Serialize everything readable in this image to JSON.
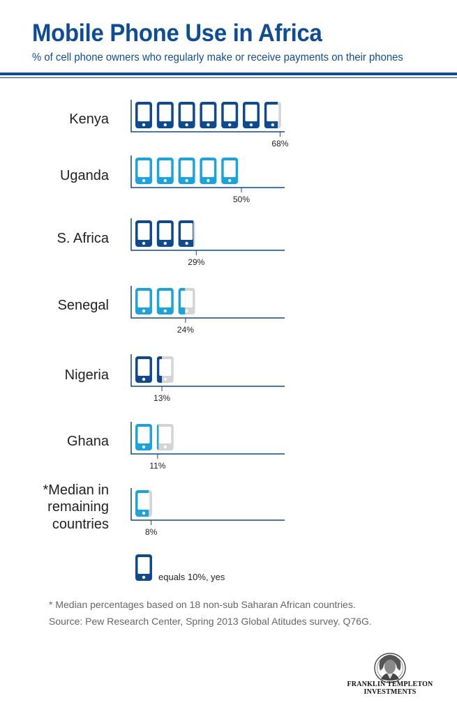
{
  "header": {
    "title": "Mobile Phone Use in Africa",
    "subtitle": "% of cell phone owners who regularly make or receive payments on their phones"
  },
  "colors": {
    "brand_blue": "#0d4d98",
    "dark_phone": "#0e4a8f",
    "light_phone": "#1aa3dd",
    "empty_phone": "#d4d4d4",
    "baseline": "#0e4a8f"
  },
  "chart_data": {
    "type": "pictogram",
    "unit": "equals 10%, yes",
    "categories": [
      "Kenya",
      "Uganda",
      "S. Africa",
      "Senegal",
      "Nigeria",
      "Ghana",
      "*Median in remaining countries"
    ],
    "values": [
      68,
      50,
      29,
      24,
      13,
      11,
      8
    ],
    "value_labels": [
      "68%",
      "50%",
      "29%",
      "24%",
      "13%",
      "11%",
      "8%"
    ],
    "row_colors": [
      "dark",
      "light",
      "dark",
      "light",
      "dark",
      "light",
      "light"
    ]
  },
  "legend": {
    "icon": "phone-icon",
    "text": "equals 10%, yes"
  },
  "footnotes": {
    "note": "* Median percentages based on 18 non-sub Saharan African countries.",
    "source": "Source: Pew Research Center, Spring 2013 Global Atitudes survey. Q76G."
  },
  "logo": {
    "line1": "FRANKLIN TEMPLETON",
    "line2": "INVESTMENTS"
  }
}
